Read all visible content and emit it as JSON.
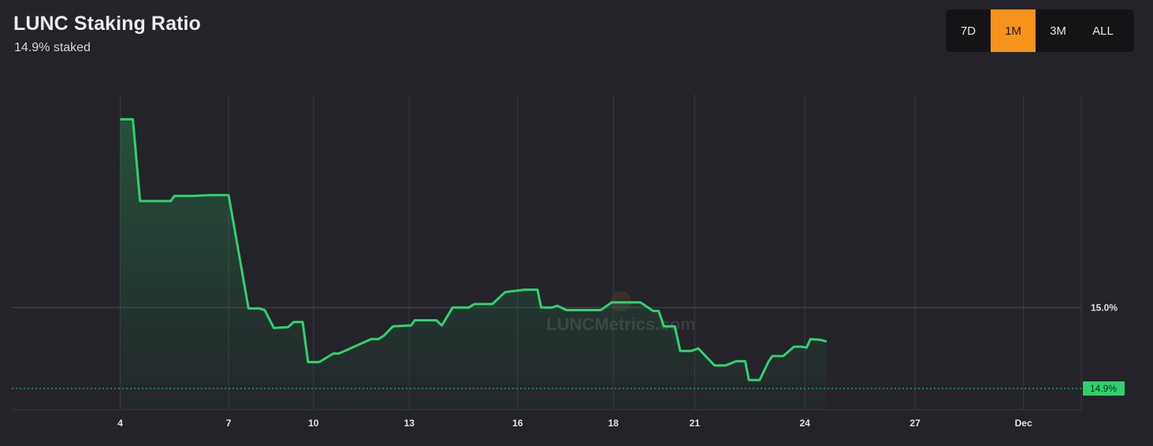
{
  "header": {
    "title": "LUNC Staking Ratio",
    "subtitle": "14.9% staked"
  },
  "range_selector": {
    "options": [
      "7D",
      "1M",
      "3M",
      "ALL"
    ],
    "active": "1M"
  },
  "watermark": "LUNCMetrics.com",
  "colors": {
    "line": "#2fd16e",
    "active_button": "#f7931a",
    "background": "#232329"
  },
  "chart_data": {
    "type": "area",
    "series": [
      {
        "points": [
          [
            4.0,
            15.221
          ],
          [
            4.35,
            15.221
          ],
          [
            4.55,
            15.125
          ],
          [
            5.4,
            15.125
          ],
          [
            5.5,
            15.131
          ],
          [
            6.0,
            15.131
          ],
          [
            6.5,
            15.132
          ],
          [
            7.0,
            15.132
          ],
          [
            7.55,
            14.999
          ],
          [
            7.85,
            14.999
          ],
          [
            8.0,
            14.997
          ],
          [
            8.25,
            14.976
          ],
          [
            8.65,
            14.977
          ],
          [
            8.8,
            14.983
          ],
          [
            9.05,
            14.983
          ],
          [
            9.2,
            14.936
          ],
          [
            9.5,
            14.936
          ],
          [
            9.55,
            14.937
          ],
          [
            9.9,
            14.946
          ],
          [
            10.05,
            14.946
          ],
          [
            10.95,
            14.963
          ],
          [
            11.15,
            14.963
          ],
          [
            11.3,
            14.967
          ],
          [
            11.55,
            14.978
          ],
          [
            12.05,
            14.979
          ],
          [
            12.15,
            14.985
          ],
          [
            12.75,
            14.985
          ],
          [
            12.9,
            14.979
          ],
          [
            13.2,
            15.0
          ],
          [
            13.65,
            15.0
          ],
          [
            13.8,
            15.004
          ],
          [
            14.3,
            15.004
          ],
          [
            14.65,
            15.018
          ],
          [
            15.2,
            15.021
          ],
          [
            15.55,
            15.021
          ],
          [
            15.65,
            15.0
          ],
          [
            15.95,
            15.0
          ],
          [
            16.1,
            15.002
          ],
          [
            16.35,
            14.997
          ],
          [
            17.3,
            14.997
          ],
          [
            17.6,
            15.006
          ],
          [
            18.4,
            15.006
          ],
          [
            18.75,
            14.996
          ],
          [
            18.9,
            14.996
          ],
          [
            19.05,
            14.978
          ],
          [
            19.35,
            14.978
          ],
          [
            19.5,
            14.949
          ],
          [
            19.8,
            14.949
          ],
          [
            20.0,
            14.952
          ],
          [
            20.45,
            14.932
          ],
          [
            20.75,
            14.932
          ],
          [
            21.05,
            14.937
          ],
          [
            21.3,
            14.937
          ],
          [
            21.4,
            14.915
          ],
          [
            21.7,
            14.915
          ],
          [
            21.95,
            14.937
          ],
          [
            22.05,
            14.943
          ],
          [
            22.35,
            14.943
          ],
          [
            22.65,
            14.954
          ],
          [
            22.85,
            14.954
          ],
          [
            23.0,
            14.953
          ],
          [
            23.1,
            14.963
          ],
          [
            23.4,
            14.962
          ],
          [
            23.55,
            14.96
          ]
        ]
      }
    ],
    "x_ticks": [
      {
        "label": "4",
        "x": 4.0
      },
      {
        "label": "7",
        "x": 7.0
      },
      {
        "label": "10",
        "x": 9.35
      },
      {
        "label": "13",
        "x": 12.0
      },
      {
        "label": "16",
        "x": 15.0
      },
      {
        "label": "18",
        "x": 17.65
      },
      {
        "label": "21",
        "x": 19.9
      },
      {
        "label": "24",
        "x": 22.95
      },
      {
        "label": "27",
        "x": 26.0
      },
      {
        "label": "Dec",
        "x": 29.0
      }
    ],
    "y_ticks": [
      {
        "label": "15.0%",
        "y": 15.0
      }
    ],
    "xlim": [
      1.0,
      30.6
    ],
    "ylim": [
      14.88,
      15.25
    ],
    "current_value": {
      "label": "14.9%",
      "y": 14.905
    },
    "grid": true
  }
}
